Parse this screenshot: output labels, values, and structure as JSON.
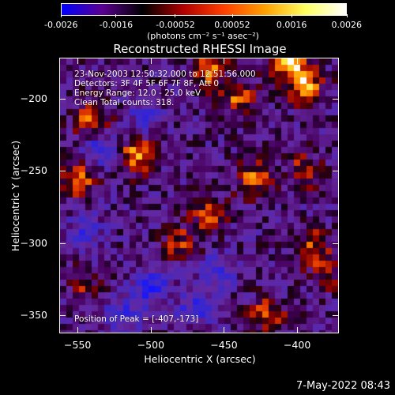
{
  "colorbar": {
    "tick_labels": [
      "-0.0026",
      "-0.0016",
      "-0.00052",
      "0.00052",
      "0.0016",
      "0.0026"
    ],
    "unit_label": "(photons cm⁻² s⁻¹ asec⁻²)",
    "range": [
      -0.0026,
      0.0026
    ],
    "colormap": [
      "#0000ff",
      "#5a0090",
      "#000000",
      "#b00000",
      "#ff4000",
      "#ffa000",
      "#ffff60",
      "#ffffff"
    ]
  },
  "plot": {
    "title": "Reconstructed RHESSI Image",
    "info_lines": [
      "23-Nov-2003 12:50:32.000 to 12:51:56.000",
      "Detectors: 3F 4F 5F 6F 7F 8F, Att 0",
      "Energy Range: 12.0 - 25.0 keV",
      "Clean    Total counts: 318."
    ],
    "peak_label": "Position of Peak = [-407,-173]"
  },
  "chart_data": {
    "type": "heatmap",
    "title": "Reconstructed RHESSI Image",
    "xlabel": "Heliocentric X (arcsec)",
    "ylabel": "Heliocentric Y (arcsec)",
    "xlim": [
      -562,
      -372
    ],
    "ylim": [
      -362,
      -172
    ],
    "x_ticks": [
      -550,
      -500,
      -450,
      -400
    ],
    "x_tick_labels": [
      "−550",
      "−500",
      "−450",
      "−400"
    ],
    "y_ticks": [
      -200,
      -250,
      -300,
      -350
    ],
    "y_tick_labels": [
      "−200",
      "−250",
      "−300",
      "−350"
    ],
    "value_range": [
      -0.0026,
      0.0026
    ],
    "peak_position": [
      -407,
      -173
    ],
    "hot_regions": [
      {
        "x": -407,
        "y": -173,
        "level": 1.0
      },
      {
        "x": -395,
        "y": -190,
        "level": 0.85
      },
      {
        "x": -460,
        "y": -180,
        "level": 0.75
      },
      {
        "x": -440,
        "y": -200,
        "level": 0.6
      },
      {
        "x": -540,
        "y": -215,
        "level": 0.7
      },
      {
        "x": -510,
        "y": -240,
        "level": 0.8
      },
      {
        "x": -550,
        "y": -255,
        "level": 0.75
      },
      {
        "x": -460,
        "y": -280,
        "level": 0.55
      },
      {
        "x": -430,
        "y": -255,
        "level": 0.65
      },
      {
        "x": -480,
        "y": -300,
        "level": 0.5
      },
      {
        "x": -395,
        "y": -250,
        "level": 0.55
      },
      {
        "x": -380,
        "y": -320,
        "level": 0.45
      },
      {
        "x": -420,
        "y": -350,
        "level": 0.6
      },
      {
        "x": -390,
        "y": -300,
        "level": 0.5
      },
      {
        "x": -545,
        "y": -330,
        "level": 0.35
      }
    ],
    "cold_regions": [
      {
        "x": -535,
        "y": -235,
        "level": -0.6
      },
      {
        "x": -500,
        "y": -330,
        "level": -0.7
      },
      {
        "x": -520,
        "y": -350,
        "level": -0.55
      },
      {
        "x": -470,
        "y": -345,
        "level": -0.5
      },
      {
        "x": -455,
        "y": -320,
        "level": -0.45
      },
      {
        "x": -505,
        "y": -210,
        "level": -0.4
      },
      {
        "x": -545,
        "y": -290,
        "level": -0.4
      }
    ]
  },
  "footer": {
    "date": "7-May-2022 08:43"
  }
}
